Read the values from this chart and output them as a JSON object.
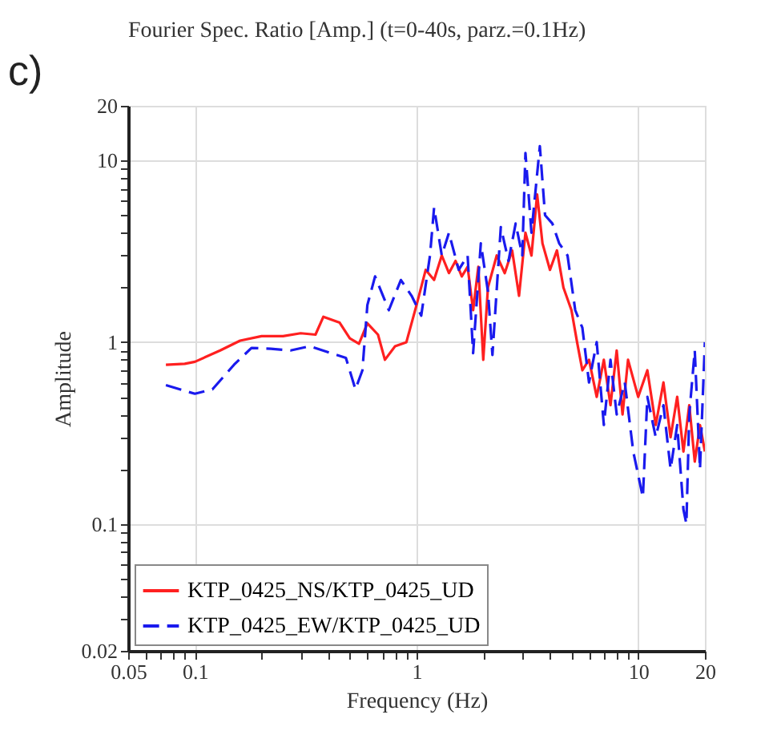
{
  "chart_data": {
    "type": "line",
    "title": "Fourier Spec. Ratio [Amp.] (t=0-40s, parz.=0.1Hz)",
    "xlabel": "Frequency (Hz)",
    "ylabel": "Amplitude",
    "annotations": [
      "c)"
    ],
    "log": "xy",
    "grid": true,
    "legend": "bottom left",
    "xlim": [
      0.05,
      20
    ],
    "ylim": [
      0.02,
      20
    ],
    "xticks": [
      0.05,
      {
        "value": 0.06,
        "label": null
      },
      {
        "value": 0.07,
        "label": null
      },
      {
        "value": 0.08,
        "label": null
      },
      {
        "value": 0.09,
        "label": null
      },
      0.1,
      {
        "value": 0.2,
        "label": null
      },
      {
        "value": 0.3,
        "label": null
      },
      {
        "value": 0.4,
        "label": null
      },
      {
        "value": 0.5,
        "label": null
      },
      {
        "value": 0.6,
        "label": null
      },
      {
        "value": 0.7,
        "label": null
      },
      {
        "value": 0.8,
        "label": null
      },
      {
        "value": 0.9,
        "label": null
      },
      1,
      {
        "value": 2,
        "label": null
      },
      {
        "value": 3,
        "label": null
      },
      {
        "value": 4,
        "label": null
      },
      {
        "value": 5,
        "label": null
      },
      {
        "value": 6,
        "label": null
      },
      {
        "value": 7,
        "label": null
      },
      {
        "value": 8,
        "label": null
      },
      {
        "value": 9,
        "label": null
      },
      10,
      20
    ],
    "yticks": [
      0.02,
      {
        "value": 0.03,
        "label": null
      },
      {
        "value": 0.04,
        "label": null
      },
      {
        "value": 0.05,
        "label": null
      },
      {
        "value": 0.06,
        "label": null
      },
      {
        "value": 0.07,
        "label": null
      },
      {
        "value": 0.08,
        "label": null
      },
      {
        "value": 0.09,
        "label": null
      },
      0.1,
      {
        "value": 0.2,
        "label": null
      },
      {
        "value": 0.3,
        "label": null
      },
      {
        "value": 0.4,
        "label": null
      },
      {
        "value": 0.5,
        "label": null
      },
      {
        "value": 0.6,
        "label": null
      },
      {
        "value": 0.7,
        "label": null
      },
      {
        "value": 0.8,
        "label": null
      },
      {
        "value": 0.9,
        "label": null
      },
      1,
      {
        "value": 2,
        "label": null
      },
      {
        "value": 3,
        "label": null
      },
      {
        "value": 4,
        "label": null
      },
      {
        "value": 5,
        "label": null
      },
      {
        "value": 6,
        "label": null
      },
      {
        "value": 7,
        "label": null
      },
      {
        "value": 8,
        "label": null
      },
      {
        "value": 9,
        "label": null
      },
      10,
      20
    ],
    "marker": "none",
    "series": [
      {
        "name": "KTP_0425_NS/KTP_0425_UD",
        "color": "#ff2020",
        "line_style": "solid",
        "x": [
          0.074,
          0.09,
          0.1,
          0.13,
          0.16,
          0.2,
          0.25,
          0.3,
          0.35,
          0.38,
          0.45,
          0.5,
          0.55,
          0.6,
          0.67,
          0.72,
          0.8,
          0.9,
          1.0,
          1.1,
          1.2,
          1.3,
          1.4,
          1.5,
          1.6,
          1.7,
          1.8,
          1.9,
          2.0,
          2.1,
          2.3,
          2.5,
          2.7,
          2.9,
          3.1,
          3.3,
          3.5,
          3.7,
          4.0,
          4.3,
          4.6,
          5.0,
          5.3,
          5.6,
          6.0,
          6.5,
          7.0,
          7.5,
          8,
          8.5,
          9,
          10,
          11,
          12,
          13,
          14,
          15,
          16,
          17,
          18,
          19,
          20
        ],
        "values": [
          0.75,
          0.76,
          0.78,
          0.9,
          1.02,
          1.08,
          1.08,
          1.12,
          1.1,
          1.38,
          1.28,
          1.05,
          0.98,
          1.27,
          1.1,
          0.8,
          0.95,
          1.0,
          1.6,
          2.5,
          2.2,
          3.0,
          2.4,
          2.8,
          2.3,
          2.6,
          1.5,
          2.6,
          0.8,
          2.0,
          3.0,
          2.4,
          3.2,
          1.8,
          4.0,
          3.0,
          6.5,
          3.5,
          2.5,
          3.2,
          2.0,
          1.5,
          1.0,
          0.7,
          0.8,
          0.5,
          0.8,
          0.45,
          0.9,
          0.4,
          0.8,
          0.5,
          0.7,
          0.35,
          0.6,
          0.3,
          0.5,
          0.25,
          0.45,
          0.22,
          0.35,
          0.25
        ]
      },
      {
        "name": "KTP_0425_EW/KTP_0425_UD",
        "color": "#1a1aee",
        "line_style": "dashed",
        "x": [
          0.074,
          0.09,
          0.1,
          0.12,
          0.15,
          0.18,
          0.22,
          0.27,
          0.33,
          0.4,
          0.48,
          0.53,
          0.57,
          0.6,
          0.65,
          0.75,
          0.85,
          0.95,
          1.05,
          1.15,
          1.2,
          1.3,
          1.4,
          1.55,
          1.7,
          1.8,
          1.95,
          2.1,
          2.2,
          2.4,
          2.6,
          2.8,
          3.0,
          3.1,
          3.3,
          3.6,
          3.8,
          4.1,
          4.4,
          4.8,
          5.2,
          5.6,
          6.0,
          6.5,
          7.0,
          7.5,
          8,
          8.7,
          9.5,
          10.5,
          11,
          12,
          13,
          14,
          15,
          16,
          16.5,
          17,
          18,
          19,
          20
        ],
        "values": [
          0.58,
          0.54,
          0.52,
          0.55,
          0.75,
          0.93,
          0.92,
          0.9,
          0.95,
          0.88,
          0.82,
          0.55,
          0.7,
          1.6,
          2.3,
          1.5,
          2.2,
          1.8,
          1.4,
          3.0,
          5.5,
          3.0,
          4.0,
          2.5,
          3.0,
          0.87,
          3.5,
          1.9,
          0.85,
          4.3,
          2.8,
          4.5,
          3.0,
          11.0,
          4.0,
          12.0,
          5.0,
          4.5,
          3.5,
          3.0,
          1.5,
          1.2,
          0.6,
          1.0,
          0.35,
          0.8,
          0.4,
          0.6,
          0.25,
          0.14,
          0.5,
          0.3,
          0.45,
          0.2,
          0.35,
          0.12,
          0.1,
          0.4,
          0.9,
          0.2,
          1.0
        ]
      }
    ]
  }
}
